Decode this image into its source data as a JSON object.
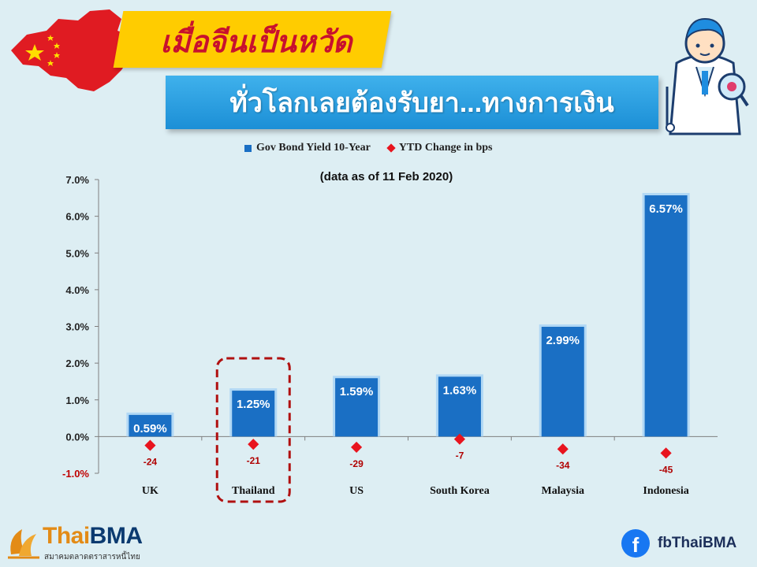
{
  "header": {
    "title": "เมื่อจีนเป็นหวัด",
    "subtitle": "ทั่วโลกเลยต้องรับยา...ทางการเงิน"
  },
  "legend": {
    "bar_series": "Gov Bond Yield 10-Year",
    "marker_series": "YTD Change in bps"
  },
  "note": "(data as of  11 Feb 2020)",
  "colors": {
    "bar": "#1a6fc4",
    "marker": "#e8141e",
    "highlight_box": "#b01010",
    "background": "#ddeef3"
  },
  "chart_data": {
    "type": "bar",
    "categories": [
      "UK",
      "Thailand",
      "US",
      "South Korea",
      "Malaysia",
      "Indonesia"
    ],
    "series": [
      {
        "name": "Gov Bond Yield 10-Year",
        "values": [
          0.59,
          1.25,
          1.59,
          1.63,
          2.99,
          6.57
        ],
        "labels": [
          "0.59%",
          "1.25%",
          "1.59%",
          "1.63%",
          "2.99%",
          "6.57%"
        ]
      },
      {
        "name": "YTD Change in bps",
        "values": [
          -24,
          -21,
          -29,
          -7,
          -34,
          -45
        ],
        "labels": [
          "-24",
          "-21",
          "-29",
          "-7",
          "-34",
          "-45"
        ]
      }
    ],
    "y_ticks": [
      "7.0%",
      "6.0%",
      "5.0%",
      "4.0%",
      "3.0%",
      "2.0%",
      "1.0%",
      "0.0%",
      "-1.0%"
    ],
    "ylim": [
      -1.0,
      7.0
    ],
    "highlighted_category": "Thailand",
    "grid": false
  },
  "footer": {
    "logo_thai": "Thai",
    "logo_bma": "BMA",
    "logo_tagline": "สมาคมตลาดตราสารหนี้ไทย",
    "facebook": "fbThaiBMA",
    "facebook_icon": "facebook-icon"
  }
}
